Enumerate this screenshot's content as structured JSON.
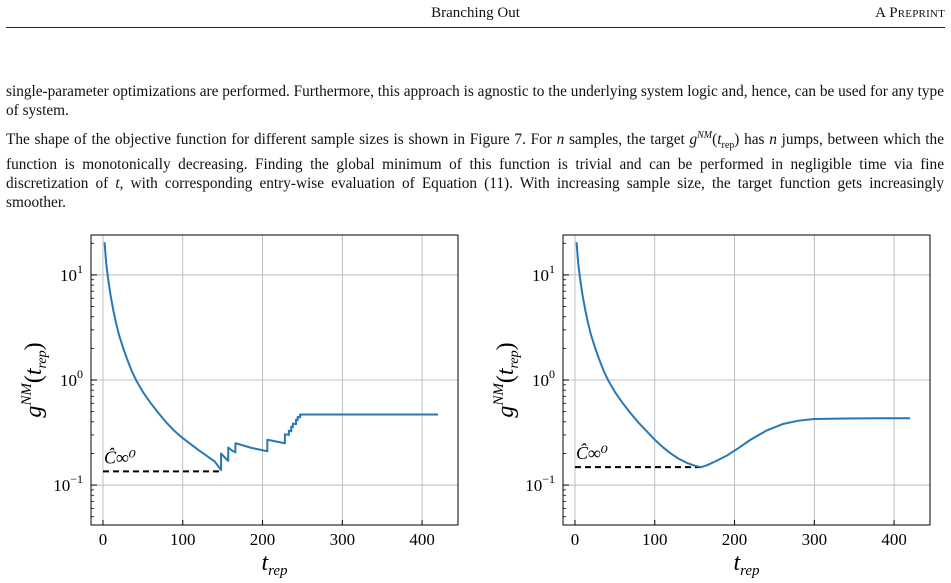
{
  "header": {
    "title": "Branching Out",
    "label": "A Preprint"
  },
  "body": {
    "para1": "single-parameter optimizations are performed. Furthermore, this approach is agnostic to the underlying system logic and, hence, can be used for any type of system.",
    "para2": "The shape of the objective function for different sample sizes is shown in Figure 7. For n samples, the target g^{NM}(t_rep) has n jumps, between which the function is monotonically decreasing. Finding the global minimum of this function is trivial and can be performed in negligible time via fine discretization of t, with corresponding entry-wise evaluation of Equation (11). With increasing sample size, the target function gets increasingly smoother."
  },
  "chart_data": [
    {
      "type": "line",
      "xlabel": "t_rep",
      "ylabel": "g^{NM}(t_rep)",
      "xlim": [
        -15,
        445
      ],
      "ylim_log10": [
        -1.38,
        1.38
      ],
      "yscale": "log",
      "grid": true,
      "xticks": [
        0,
        100,
        200,
        300,
        400
      ],
      "yticks": [
        "10^-1",
        "10^0",
        "10^1"
      ],
      "annotation": "Ĉ∞⁰",
      "hline": {
        "y": 0.135,
        "x": [
          0,
          148
        ],
        "style": "dashed"
      },
      "series": [
        {
          "color": "#2778b4",
          "x": [
            2,
            4,
            6,
            8,
            10,
            13,
            16,
            20,
            25,
            30,
            36,
            42,
            50,
            60,
            70,
            80,
            90,
            100,
            110,
            120,
            130,
            140,
            148,
            148,
            152,
            157,
            157,
            161,
            166,
            166,
            176,
            186,
            206,
            206,
            217,
            228,
            228,
            233,
            233,
            236,
            236,
            238,
            238,
            242,
            242,
            244,
            244,
            247,
            247,
            250,
            250,
            420
          ],
          "y": [
            20.5,
            13,
            9.8,
            7.6,
            6.1,
            4.6,
            3.6,
            2.7,
            2.05,
            1.6,
            1.22,
            0.98,
            0.77,
            0.6,
            0.48,
            0.39,
            0.325,
            0.28,
            0.245,
            0.215,
            0.19,
            0.168,
            0.139,
            0.2,
            0.185,
            0.17,
            0.228,
            0.215,
            0.205,
            0.25,
            0.238,
            0.226,
            0.21,
            0.27,
            0.26,
            0.25,
            0.305,
            0.3,
            0.33,
            0.325,
            0.36,
            0.355,
            0.385,
            0.38,
            0.42,
            0.415,
            0.445,
            0.44,
            0.47,
            0.467,
            0.47,
            0.47
          ]
        }
      ]
    },
    {
      "type": "line",
      "xlabel": "t_rep",
      "ylabel": "g^{NM}(t_rep)",
      "xlim": [
        -15,
        445
      ],
      "ylim_log10": [
        -1.38,
        1.38
      ],
      "yscale": "log",
      "grid": true,
      "xticks": [
        0,
        100,
        200,
        300,
        400
      ],
      "yticks": [
        "10^-1",
        "10^0",
        "10^1"
      ],
      "annotation": "Ĉ∞⁰",
      "hline": {
        "y": 0.148,
        "x": [
          0,
          158
        ],
        "style": "dashed"
      },
      "series": [
        {
          "color": "#2778b4",
          "x": [
            2,
            4,
            6,
            8,
            10,
            13,
            16,
            20,
            25,
            30,
            36,
            42,
            50,
            60,
            70,
            80,
            90,
            100,
            110,
            120,
            130,
            140,
            150,
            158,
            166,
            176,
            190,
            205,
            220,
            240,
            260,
            280,
            300,
            340,
            380,
            420
          ],
          "y": [
            20.5,
            13,
            9.8,
            7.6,
            6.1,
            4.6,
            3.6,
            2.7,
            2.05,
            1.6,
            1.22,
            0.98,
            0.77,
            0.6,
            0.48,
            0.39,
            0.325,
            0.27,
            0.23,
            0.2,
            0.178,
            0.163,
            0.153,
            0.148,
            0.155,
            0.168,
            0.19,
            0.225,
            0.27,
            0.33,
            0.38,
            0.41,
            0.425,
            0.43,
            0.432,
            0.433
          ]
        }
      ]
    }
  ]
}
